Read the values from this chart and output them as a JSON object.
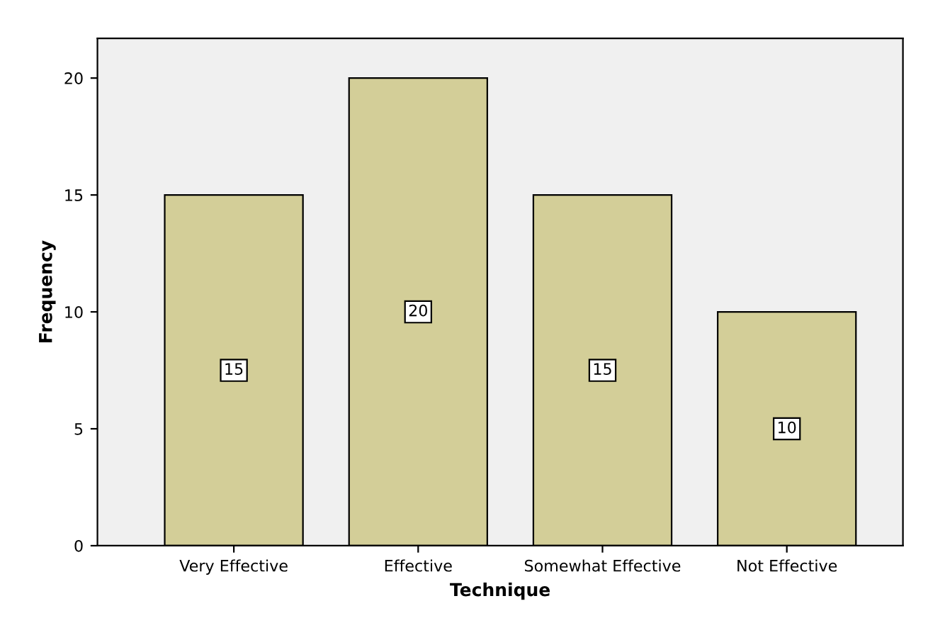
{
  "chart_data": {
    "type": "bar",
    "xlabel": "Technique",
    "ylabel": "Frequency",
    "categories": [
      "Very Effective",
      "Effective",
      "Somewhat Effective",
      "Not Effective"
    ],
    "values": [
      15,
      20,
      15,
      10
    ],
    "color": "#d3ce98",
    "ylim": [
      0,
      21.7
    ],
    "yticks": [
      0,
      5,
      10,
      15,
      20
    ],
    "grid": false,
    "data_labels": true
  }
}
